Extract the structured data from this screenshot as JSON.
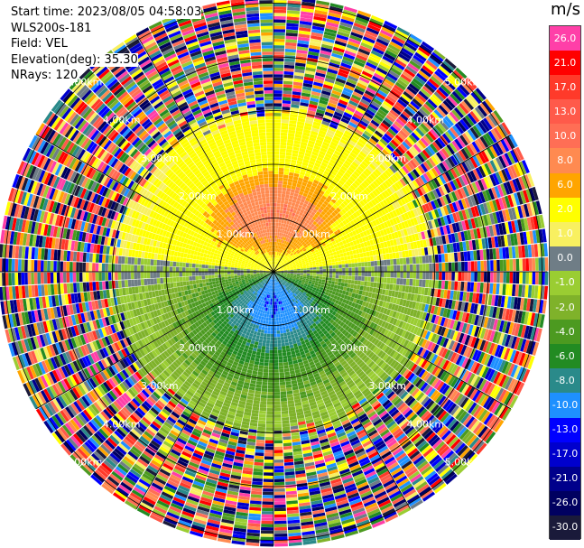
{
  "header": {
    "start_time": "Start time: 2023/08/05 04:58:03",
    "instrument": "WLS200s-181",
    "field": "Field: VEL",
    "elevation": "Elevation(deg): 35.30",
    "nrays": "NRays: 120"
  },
  "colorbar": {
    "unit": "m/s",
    "bins": [
      {
        "label": "26.0",
        "color": "#ff3fa8"
      },
      {
        "label": "21.0",
        "color": "#ff0000"
      },
      {
        "label": "17.0",
        "color": "#ff3a2a"
      },
      {
        "label": "13.0",
        "color": "#ff5a4a"
      },
      {
        "label": "10.0",
        "color": "#ff6e55"
      },
      {
        "label": "8.0",
        "color": "#ff8a50"
      },
      {
        "label": "6.0",
        "color": "#ffa500"
      },
      {
        "label": "2.0",
        "color": "#ffff00"
      },
      {
        "label": "1.0",
        "color": "#f8f060"
      },
      {
        "label": "0.0",
        "color": "#6f7d86"
      },
      {
        "label": "-1.0",
        "color": "#9acd32"
      },
      {
        "label": "-2.0",
        "color": "#7fb22a"
      },
      {
        "label": "-4.0",
        "color": "#4c9a20"
      },
      {
        "label": "-6.0",
        "color": "#228b22"
      },
      {
        "label": "-8.0",
        "color": "#2a8a8a"
      },
      {
        "label": "-10.0",
        "color": "#1e90ff"
      },
      {
        "label": "-13.0",
        "color": "#0000ff"
      },
      {
        "label": "-17.0",
        "color": "#0000cd"
      },
      {
        "label": "-21.0",
        "color": "#00008b"
      },
      {
        "label": "-26.0",
        "color": "#000060"
      },
      {
        "label": "-30.0",
        "color": "#1a1a3a"
      }
    ]
  },
  "chart_data": {
    "type": "heatmap",
    "subtype": "polar-ppi",
    "field": "VEL",
    "unit": "m/s",
    "nrays": 120,
    "elevation_deg": 35.3,
    "range_rings_km": [
      1.0,
      2.0,
      3.0,
      4.0,
      5.0
    ],
    "ring_labels": [
      "1.00km",
      "2.00km",
      "3.00km",
      "4.00km",
      "5.00km"
    ],
    "radial_lines": 12,
    "coherent_region_km": 3.0,
    "velocity_pattern": {
      "north_half": "positive (≈2 to 10 m/s, max ≈10 near 1 km N)",
      "south_half": "negative (≈-1 to -10 m/s, min ≈-10 near 0.5 km S)",
      "zero_line": "east-west",
      "beyond_3km": "noise (random values across full scale)"
    },
    "grid": true
  }
}
